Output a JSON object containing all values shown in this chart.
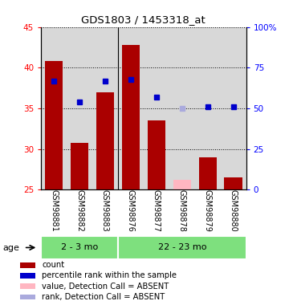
{
  "title": "GDS1803 / 1453318_at",
  "samples": [
    "GSM98881",
    "GSM98882",
    "GSM98883",
    "GSM98876",
    "GSM98877",
    "GSM98878",
    "GSM98879",
    "GSM98880"
  ],
  "counts": [
    40.8,
    30.8,
    37.0,
    42.8,
    33.5,
    null,
    29.0,
    26.5
  ],
  "absent_counts": [
    null,
    null,
    null,
    null,
    null,
    26.2,
    null,
    null
  ],
  "rank_pct": [
    67.0,
    54.0,
    67.0,
    68.0,
    57.0,
    null,
    51.0,
    51.0
  ],
  "absent_rank_pct": [
    null,
    null,
    null,
    null,
    null,
    50.0,
    null,
    null
  ],
  "groups": [
    {
      "label": "2 - 3 mo",
      "start": 0,
      "end": 3
    },
    {
      "label": "22 - 23 mo",
      "start": 3,
      "end": 8
    }
  ],
  "group_divider": 2.5,
  "ylim": [
    25,
    45
  ],
  "ylim_right": [
    0,
    100
  ],
  "yticks_left": [
    25,
    30,
    35,
    40,
    45
  ],
  "yticks_right": [
    0,
    25,
    50,
    75,
    100
  ],
  "bar_color": "#AA0000",
  "absent_bar_color": "#FFB6C1",
  "rank_color": "#0000CC",
  "absent_rank_color": "#AAAADD",
  "bg_color": "#D8D8D8",
  "group_color": "#7EE07E",
  "legend_items": [
    {
      "color": "#AA0000",
      "label": "count"
    },
    {
      "color": "#0000CC",
      "label": "percentile rank within the sample"
    },
    {
      "color": "#FFB6C1",
      "label": "value, Detection Call = ABSENT"
    },
    {
      "color": "#AAAADD",
      "label": "rank, Detection Call = ABSENT"
    }
  ]
}
